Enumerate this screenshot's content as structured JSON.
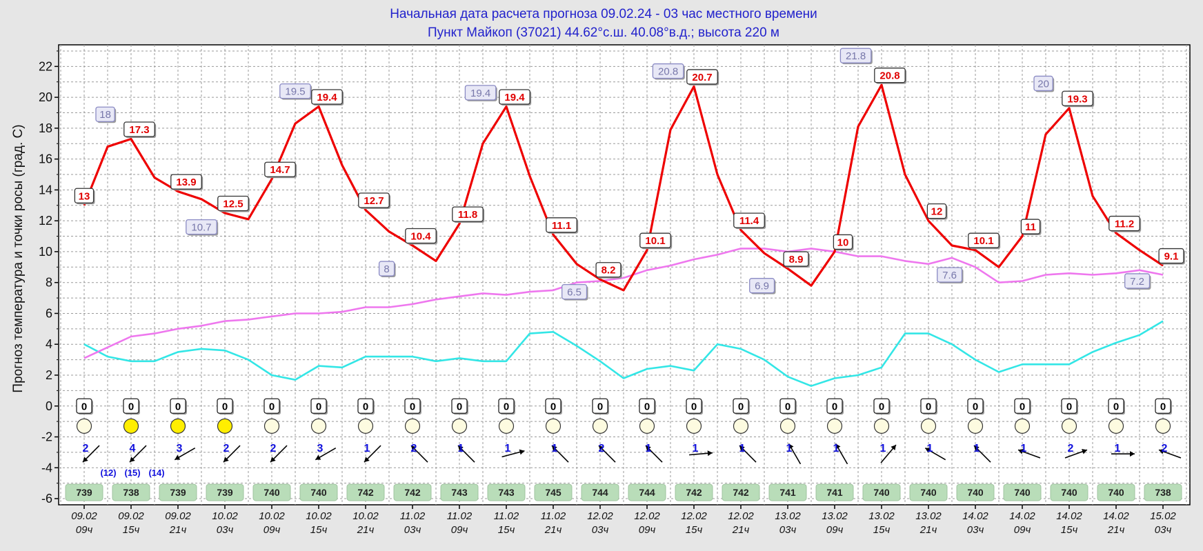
{
  "header": {
    "line1": "Начальная дата расчета прогноза 09.02.24  -  03 час местного времени",
    "line2": "Пункт  Майкоп (37021)    44.62°с.ш.  40.08°в.д.; высота 220 м"
  },
  "chart_data": {
    "type": "line",
    "ylabel": "Прогноз температура и точки росы (град. C)",
    "ylim": [
      -6.4,
      23.4
    ],
    "yticks": [
      -6,
      -4,
      -2,
      0,
      2,
      4,
      6,
      8,
      10,
      12,
      14,
      16,
      18,
      20,
      22
    ],
    "grid": true,
    "x_tick_labels": [
      [
        "09.02",
        "09ч"
      ],
      [
        "09.02",
        "15ч"
      ],
      [
        "09.02",
        "21ч"
      ],
      [
        "10.02",
        "03ч"
      ],
      [
        "10.02",
        "09ч"
      ],
      [
        "10.02",
        "15ч"
      ],
      [
        "10.02",
        "21ч"
      ],
      [
        "11.02",
        "03ч"
      ],
      [
        "11.02",
        "09ч"
      ],
      [
        "11.02",
        "15ч"
      ],
      [
        "11.02",
        "21ч"
      ],
      [
        "12.02",
        "03ч"
      ],
      [
        "12.02",
        "09ч"
      ],
      [
        "12.02",
        "15ч"
      ],
      [
        "12.02",
        "21ч"
      ],
      [
        "13.02",
        "03ч"
      ],
      [
        "13.02",
        "09ч"
      ],
      [
        "13.02",
        "15ч"
      ],
      [
        "13.02",
        "21ч"
      ],
      [
        "14.02",
        "03ч"
      ],
      [
        "14.02",
        "09ч"
      ],
      [
        "14.02",
        "15ч"
      ],
      [
        "14.02",
        "21ч"
      ],
      [
        "15.02",
        "03ч"
      ]
    ],
    "series": [
      {
        "key": "temperature",
        "color": "#ee0000",
        "x": [
          0,
          0.5,
          1,
          1.5,
          2,
          2.5,
          3,
          3.5,
          4,
          4.5,
          5,
          5.5,
          6,
          6.5,
          7,
          7.5,
          8,
          8.5,
          9,
          9.5,
          10,
          10.5,
          11,
          11.5,
          12,
          12.5,
          13,
          13.5,
          14,
          14.5,
          15,
          15.5,
          16,
          16.5,
          17,
          17.5,
          18,
          18.5,
          19,
          19.5,
          20,
          20.5,
          21,
          21.5,
          22,
          22.5,
          23
        ],
        "values": [
          13,
          16.8,
          17.3,
          14.8,
          13.9,
          13.4,
          12.5,
          12.1,
          14.7,
          18.3,
          19.4,
          15.6,
          12.7,
          11.3,
          10.4,
          9.4,
          11.8,
          17.0,
          19.4,
          14.9,
          11.1,
          9.2,
          8.2,
          7.5,
          10.1,
          17.9,
          20.7,
          15.0,
          11.4,
          9.9,
          8.9,
          7.8,
          10,
          18.1,
          20.8,
          15.0,
          12,
          10.4,
          10.1,
          9.0,
          11,
          17.6,
          19.3,
          13.6,
          11.2,
          10.1,
          9.1
        ]
      },
      {
        "key": "dewpoint",
        "color": "#ee77ee",
        "x": [
          0,
          0.5,
          1,
          1.5,
          2,
          2.5,
          3,
          3.5,
          4,
          4.5,
          5,
          5.5,
          6,
          6.5,
          7,
          7.5,
          8,
          8.5,
          9,
          9.5,
          10,
          10.5,
          11,
          11.5,
          12,
          12.5,
          13,
          13.5,
          14,
          14.5,
          15,
          15.5,
          16,
          16.5,
          17,
          17.5,
          18,
          18.5,
          19,
          19.5,
          20,
          20.5,
          21,
          21.5,
          22,
          22.5,
          23
        ],
        "values": [
          3.1,
          3.8,
          4.5,
          4.7,
          5.0,
          5.2,
          5.5,
          5.6,
          5.8,
          6.0,
          6.0,
          6.1,
          6.4,
          6.4,
          6.6,
          6.9,
          7.1,
          7.3,
          7.2,
          7.4,
          7.5,
          8.0,
          8.1,
          8.3,
          8.8,
          9.1,
          9.5,
          9.8,
          10.2,
          10.2,
          10.0,
          10.2,
          10.0,
          9.7,
          9.7,
          9.4,
          9.2,
          9.6,
          9.0,
          8.0,
          8.1,
          8.5,
          8.6,
          8.5,
          8.6,
          8.8,
          8.5
        ]
      },
      {
        "key": "cyan",
        "color": "#33e6e6",
        "x": [
          0,
          0.5,
          1,
          1.5,
          2,
          2.5,
          3,
          3.5,
          4,
          4.5,
          5,
          5.5,
          6,
          6.5,
          7,
          7.5,
          8,
          8.5,
          9,
          9.5,
          10,
          10.5,
          11,
          11.5,
          12,
          12.5,
          13,
          13.5,
          14,
          14.5,
          15,
          15.5,
          16,
          16.5,
          17,
          17.5,
          18,
          18.5,
          19,
          19.5,
          20,
          20.5,
          21,
          21.5,
          22,
          22.5,
          23
        ],
        "values": [
          4.0,
          3.2,
          2.9,
          2.9,
          3.5,
          3.7,
          3.6,
          3.0,
          2.0,
          1.7,
          2.6,
          2.5,
          3.2,
          3.2,
          3.2,
          2.9,
          3.1,
          2.9,
          2.9,
          4.7,
          4.8,
          3.9,
          2.9,
          1.8,
          2.4,
          2.6,
          2.3,
          4.0,
          3.7,
          3.0,
          1.9,
          1.3,
          1.8,
          2.0,
          2.5,
          4.7,
          4.7,
          4.0,
          3.0,
          2.2,
          2.7,
          2.7,
          2.7,
          3.5,
          4.1,
          4.6,
          5.5
        ]
      }
    ],
    "temp_labels": [
      {
        "x": 0,
        "y": 13,
        "text": "13"
      },
      {
        "x": 1,
        "y": 17.3,
        "text": "17.3"
      },
      {
        "x": 2,
        "y": 13.9,
        "text": "13.9"
      },
      {
        "x": 3,
        "y": 12.5,
        "text": "12.5"
      },
      {
        "x": 4,
        "y": 14.7,
        "text": "14.7"
      },
      {
        "x": 5,
        "y": 19.4,
        "text": "19.4"
      },
      {
        "x": 6,
        "y": 12.7,
        "text": "12.7"
      },
      {
        "x": 7,
        "y": 10.4,
        "text": "10.4"
      },
      {
        "x": 8,
        "y": 11.8,
        "text": "11.8"
      },
      {
        "x": 9,
        "y": 19.4,
        "text": "19.4"
      },
      {
        "x": 10,
        "y": 11.1,
        "text": "11.1"
      },
      {
        "x": 11,
        "y": 8.2,
        "text": "8.2"
      },
      {
        "x": 12,
        "y": 10.1,
        "text": "10.1"
      },
      {
        "x": 13,
        "y": 20.7,
        "text": "20.7"
      },
      {
        "x": 14,
        "y": 11.4,
        "text": "11.4"
      },
      {
        "x": 15,
        "y": 8.9,
        "text": "8.9"
      },
      {
        "x": 16,
        "y": 10,
        "text": "10"
      },
      {
        "x": 17,
        "y": 20.8,
        "text": "20.8"
      },
      {
        "x": 18,
        "y": 12,
        "text": "12"
      },
      {
        "x": 19,
        "y": 10.1,
        "text": "10.1"
      },
      {
        "x": 20,
        "y": 11,
        "text": "11"
      },
      {
        "x": 21,
        "y": 19.3,
        "text": "19.3"
      },
      {
        "x": 22,
        "y": 11.2,
        "text": "11.2"
      },
      {
        "x": 23,
        "y": 9.1,
        "text": "9.1"
      }
    ],
    "dew_labels": [
      {
        "x": 0.45,
        "y": 18.9,
        "text": "18"
      },
      {
        "x": 2.5,
        "y": 11.6,
        "text": "10.7"
      },
      {
        "x": 4.5,
        "y": 20.4,
        "text": "19.5"
      },
      {
        "x": 6.45,
        "y": 8.9,
        "text": "8"
      },
      {
        "x": 8.45,
        "y": 20.3,
        "text": "19.4"
      },
      {
        "x": 10.45,
        "y": 7.4,
        "text": "6.5"
      },
      {
        "x": 12.45,
        "y": 21.7,
        "text": "20.8"
      },
      {
        "x": 14.45,
        "y": 7.8,
        "text": "6.9"
      },
      {
        "x": 16.45,
        "y": 22.7,
        "text": "21.8"
      },
      {
        "x": 18.45,
        "y": 8.5,
        "text": "7.6"
      },
      {
        "x": 20.45,
        "y": 20.9,
        "text": "20"
      },
      {
        "x": 22.45,
        "y": 8.1,
        "text": "7.2"
      }
    ],
    "precipitation": [
      "0",
      "0",
      "0",
      "0",
      "0",
      "0",
      "0",
      "0",
      "0",
      "0",
      "0",
      "0",
      "0",
      "0",
      "0",
      "0",
      "0",
      "0",
      "0",
      "0",
      "0",
      "0",
      "0",
      "0"
    ],
    "sky_cover": [
      "clear",
      "sunny",
      "sunny",
      "sunny",
      "clear",
      "clear",
      "clear",
      "clear",
      "clear",
      "clear",
      "clear",
      "clear",
      "clear",
      "clear",
      "clear",
      "clear",
      "clear",
      "clear",
      "clear",
      "clear",
      "clear",
      "clear",
      "clear",
      "clear"
    ],
    "wind_speed": [
      "2",
      "4",
      "3",
      "2",
      "2",
      "3",
      "1",
      "2",
      "1",
      "1",
      "1",
      "2",
      "1",
      "1",
      "1",
      "1",
      "1",
      "1",
      "1",
      "1",
      "1",
      "2",
      "1",
      "2"
    ],
    "wind_direction_deg": [
      225,
      225,
      240,
      225,
      225,
      240,
      225,
      315,
      315,
      75,
      315,
      315,
      315,
      85,
      315,
      330,
      330,
      40,
      300,
      315,
      290,
      70,
      90,
      290
    ],
    "wind_gusts": [
      "(12)",
      "(15)",
      "(14)"
    ],
    "pressure": [
      "739",
      "738",
      "739",
      "739",
      "740",
      "740",
      "742",
      "742",
      "743",
      "743",
      "745",
      "744",
      "744",
      "742",
      "742",
      "741",
      "741",
      "740",
      "740",
      "740",
      "740",
      "740",
      "740",
      "738"
    ]
  }
}
